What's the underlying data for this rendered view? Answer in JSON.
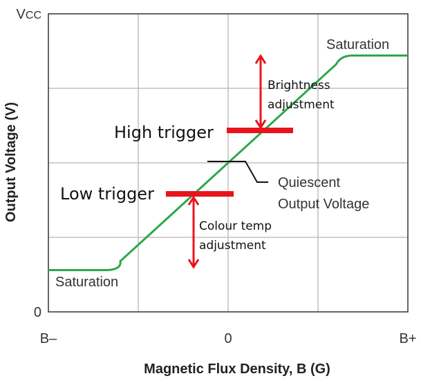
{
  "chart_data": {
    "type": "line",
    "xlabel": "Magnetic Flux Density, B (G)",
    "ylabel": "Output Voltage (V)",
    "x_ticks": [
      {
        "value": -1,
        "label": "B–"
      },
      {
        "value": 0,
        "label": "0"
      },
      {
        "value": 1,
        "label": "B+"
      }
    ],
    "y_ticks": [
      {
        "value": 0,
        "label": "0"
      },
      {
        "value": 1,
        "label": "V",
        "sub": "CC"
      }
    ],
    "xlim": [
      -1,
      1
    ],
    "ylim": [
      0,
      1
    ],
    "grid": true,
    "series": [
      {
        "color": "#2aa84a",
        "x": [
          -1.0,
          -0.69,
          -0.6,
          0.0,
          0.6,
          0.69,
          1.0
        ],
        "y": [
          0.14,
          0.14,
          0.17,
          0.5,
          0.83,
          0.86,
          0.86
        ]
      }
    ],
    "annotations": {
      "saturation_high": "Saturation",
      "saturation_low": "Saturation",
      "quiescent_line1": "Quiescent",
      "quiescent_line2": "Output Voltage",
      "high_trigger": "High trigger",
      "low_trigger": "Low trigger",
      "brightness_line1": "Brightness",
      "brightness_line2": "adjustment",
      "colour_line1": "Colour temp",
      "colour_line2": "adjustment"
    },
    "markers": {
      "high_trigger_level": 0.61,
      "low_trigger_level": 0.4,
      "high_trigger_color": "#e8141b",
      "low_trigger_color": "#e8141b"
    }
  }
}
